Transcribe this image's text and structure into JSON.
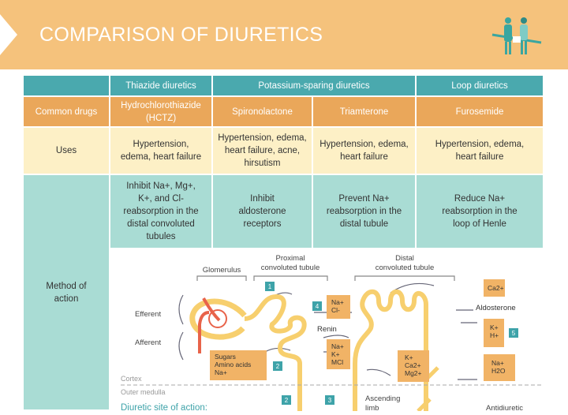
{
  "title": "COMPARISON OF DIURETICS",
  "colors": {
    "banner": "#f5c27c",
    "teal": "#4aa9ae",
    "orange": "#eaa75a",
    "light_yellow": "#fdf0c6",
    "light_teal": "#a9dcd4",
    "tubule": "#f7cf6e",
    "vessel": "#e8634a"
  },
  "table": {
    "headers": [
      "",
      "Thiazide diuretics",
      "Potassium-sparing diuretics",
      "Loop diuretics"
    ],
    "drugs": {
      "label": "Common drugs",
      "values": [
        "Hydrochlorothiazide (HCTZ)",
        "Spironolactone",
        "Triamterone",
        "Furosemide"
      ]
    },
    "uses": {
      "label": "Uses",
      "values": [
        "Hypertension, edema, heart failure",
        "Hypertension, edema, heart failure, acne, hirsutism",
        "Hypertension, edema, heart failure",
        "Hypertension, edema, heart failure"
      ]
    },
    "mechanism": {
      "values": [
        "Inhibit Na+, Mg+, K+, and Cl- reabsorption in the distal convoluted tubules",
        "Inhibit aldosterone receptors",
        "Prevent Na+ reabsorption in the distal tubule",
        "Reduce Na+ reabsorption in the loop of Henle"
      ]
    },
    "method": {
      "label": "Method of action"
    }
  },
  "diagram": {
    "glomerulus": "Glomerulus",
    "proximal": "Proximal convoluted tubule",
    "distal": "Distal convoluted tubule",
    "efferent": "Efferent",
    "afferent": "Afferent",
    "sugars": "Sugars Amino acids Na+",
    "na_cl": "Na+ Cl-",
    "renin": "Renin",
    "na_k_mcl": "Na+ K+ MCl",
    "k_ca_mg": "K+ Ca2+ Mg2+",
    "ca": "Ca2+",
    "aldosterone": "Aldosterone",
    "k_h": "K+ H+",
    "na_h2o": "Na+ H2O",
    "cortex": "Cortex",
    "outer_medulla": "Outer medulla",
    "ascending": "Ascending limb",
    "antidiuretic": "Antidiuretic",
    "site_label": "Diuretic site of action:",
    "markers": [
      "1",
      "2",
      "4",
      "2",
      "3",
      "5"
    ]
  }
}
